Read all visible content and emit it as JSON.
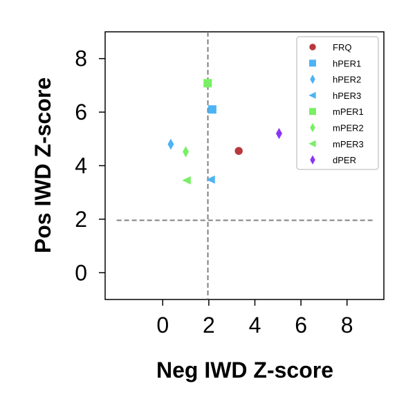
{
  "chart_data": {
    "type": "scatter",
    "xlabel": "Neg IWD Z-score",
    "ylabel": "Pos IWD Z-score",
    "xlim": [
      -2.5,
      9.6
    ],
    "ylim": [
      -1.0,
      9.0
    ],
    "xticks": [
      "0",
      "2",
      "4",
      "6",
      "8"
    ],
    "yticks": [
      "0",
      "2",
      "4",
      "6",
      "8"
    ],
    "grid": false,
    "legend_position": "top-right",
    "threshold_lines": {
      "x": 1.96,
      "y": 1.96,
      "style": "dashed",
      "color": "#808080"
    },
    "series": [
      {
        "name": "FRQ",
        "marker": "circle",
        "color": "#b8393d",
        "x": [
          3.3
        ],
        "y": [
          4.55
        ]
      },
      {
        "name": "hPER1",
        "marker": "square",
        "color": "#4db3f5",
        "x": [
          2.15
        ],
        "y": [
          6.1
        ]
      },
      {
        "name": "hPER2",
        "marker": "thin-diamond",
        "color": "#4db3f5",
        "x": [
          0.35
        ],
        "y": [
          4.8
        ]
      },
      {
        "name": "hPER3",
        "marker": "triangle-left",
        "color": "#4db3f5",
        "x": [
          2.1
        ],
        "y": [
          3.48
        ]
      },
      {
        "name": "mPER1",
        "marker": "square",
        "color": "#78f064",
        "x": [
          1.95
        ],
        "y": [
          7.08
        ]
      },
      {
        "name": "mPER2",
        "marker": "thin-diamond",
        "color": "#78f064",
        "x": [
          1.0
        ],
        "y": [
          4.52
        ]
      },
      {
        "name": "mPER3",
        "marker": "triangle-left",
        "color": "#78f064",
        "x": [
          1.05
        ],
        "y": [
          3.45
        ]
      },
      {
        "name": "dPER",
        "marker": "thin-diamond",
        "color": "#8a35f5",
        "x": [
          5.05
        ],
        "y": [
          5.2
        ]
      }
    ]
  }
}
